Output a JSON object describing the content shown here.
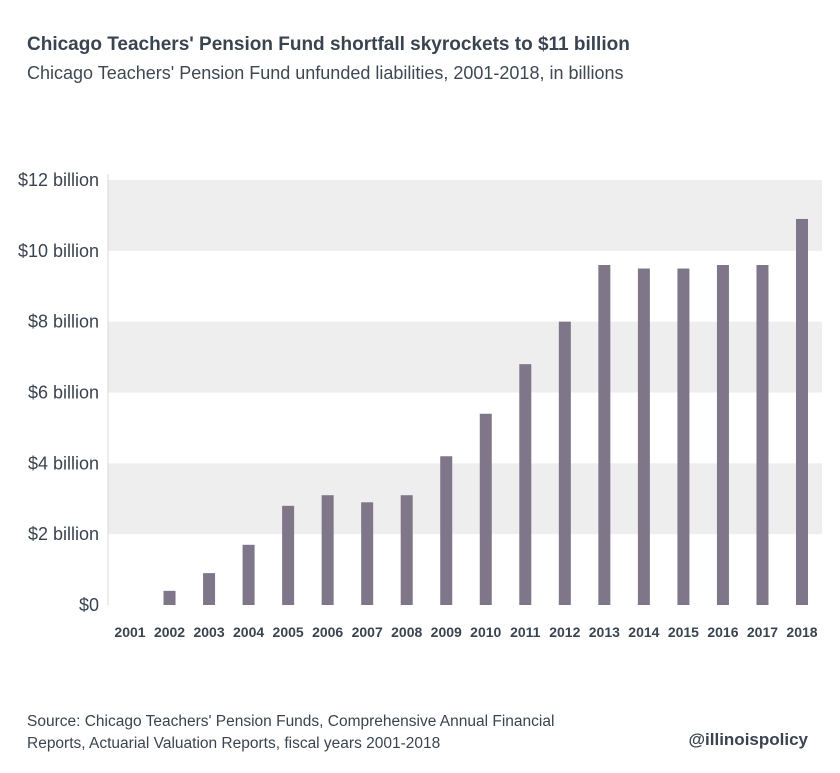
{
  "header": {
    "title": "Chicago Teachers' Pension Fund shortfall skyrockets to $11 billion",
    "subtitle": "Chicago Teachers' Pension Fund unfunded liabilities, 2001-2018, in billions"
  },
  "footer": {
    "source_line1": "Source:  Chicago Teachers' Pension Funds, Comprehensive Annual Financial",
    "source_line2": "Reports, Actuarial Valuation Reports, fiscal years 2001-2018",
    "handle": "@illinoispolicy"
  },
  "colors": {
    "bar": "#7f7689",
    "band": "#eeeeee",
    "text": "#3a4450"
  },
  "chart_data": {
    "type": "bar",
    "title": "Chicago Teachers' Pension Fund shortfall skyrockets to $11 billion",
    "subtitle": "Chicago Teachers' Pension Fund unfunded liabilities, 2001-2018, in billions",
    "categories": [
      "2001",
      "2002",
      "2003",
      "2004",
      "2005",
      "2006",
      "2007",
      "2008",
      "2009",
      "2010",
      "2011",
      "2012",
      "2013",
      "2014",
      "2015",
      "2016",
      "2017",
      "2018"
    ],
    "values": [
      0.0,
      0.4,
      0.9,
      1.7,
      2.8,
      3.1,
      2.9,
      3.1,
      4.2,
      5.4,
      6.8,
      8.0,
      9.6,
      9.5,
      9.5,
      9.6,
      9.6,
      10.9
    ],
    "ylim": [
      0,
      12
    ],
    "yticks": [
      0,
      2,
      4,
      6,
      8,
      10,
      12
    ],
    "ytick_labels": [
      "$0",
      "$2 billion",
      "$4 billion",
      "$6 billion",
      "$8 billion",
      "$10 billion",
      "$12 billion"
    ],
    "xlabel": "",
    "ylabel": "",
    "grid": "alternating horizontal bands"
  }
}
